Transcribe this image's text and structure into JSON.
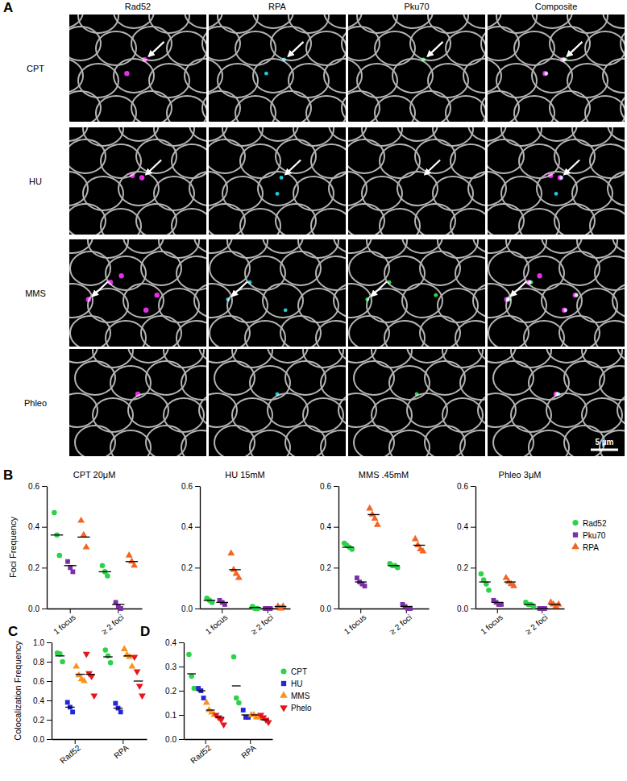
{
  "panel_a": {
    "label": "A",
    "columns": [
      "Rad52",
      "RPA",
      "Pku70",
      "Composite"
    ],
    "rows": [
      "CPT",
      "HU",
      "MMS",
      "Phleo"
    ],
    "scale_bar": "5 µm"
  },
  "chart_data": [
    {
      "type": "dot",
      "title": "CPT 20μM",
      "annotations": [
        "B"
      ],
      "y_label": "Foci Frequency",
      "categories": [
        "1 focus",
        "≥ 2 foci"
      ],
      "ylim": [
        0,
        0.6
      ],
      "yticks": [
        {
          "value": 0,
          "label": "0.0"
        },
        0.2,
        0.4,
        0.6
      ],
      "series": [
        {
          "name": "Rad52",
          "color": "#2dd24b",
          "marker": "circle",
          "values": [
            [
              0.47,
              0.36,
              0.26
            ],
            [
              0.21,
              0.18,
              0.16
            ]
          ],
          "means": [
            0.36,
            0.18
          ]
        },
        {
          "name": "Pku70",
          "color": "#7b2fa8",
          "marker": "square",
          "values": [
            [
              0.23,
              0.2,
              0.18
            ],
            [
              0.03,
              0.01,
              0.0
            ]
          ],
          "means": [
            0.21,
            0.02
          ]
        },
        {
          "name": "RPA",
          "color": "#f26522",
          "marker": "triangle",
          "values": [
            [
              0.43,
              0.36,
              0.3
            ],
            [
              0.26,
              0.23,
              0.21
            ]
          ],
          "means": [
            0.35,
            0.23
          ]
        }
      ]
    },
    {
      "type": "dot",
      "title": "HU 15mM",
      "categories": [
        "1 focus",
        "≥ 2 foci"
      ],
      "ylim": [
        0,
        0.6
      ],
      "yticks": [
        {
          "value": 0,
          "label": "0.0"
        },
        0.2,
        0.4,
        0.6
      ],
      "series": [
        {
          "name": "Rad52",
          "color": "#2dd24b",
          "marker": "circle",
          "values": [
            [
              0.05,
              0.04,
              0.03
            ],
            [
              0.01,
              0.0,
              0.0
            ]
          ],
          "means": [
            0.04,
            0.005
          ]
        },
        {
          "name": "Pku70",
          "color": "#7b2fa8",
          "marker": "square",
          "values": [
            [
              0.04,
              0.03,
              0.02
            ],
            [
              0.0,
              0.0,
              0.0
            ]
          ],
          "means": [
            0.03,
            0.0
          ]
        },
        {
          "name": "RPA",
          "color": "#f26522",
          "marker": "triangle",
          "values": [
            [
              0.27,
              0.19,
              0.17,
              0.15
            ],
            [
              0.01,
              0.0,
              0.01
            ]
          ],
          "means": [
            0.19,
            0.01
          ]
        }
      ]
    },
    {
      "type": "dot",
      "title": "MMS .45mM",
      "categories": [
        "1 focus",
        "≥ 2 foci"
      ],
      "ylim": [
        0,
        0.6
      ],
      "yticks": [
        {
          "value": 0,
          "label": "0.0"
        },
        0.2,
        0.4,
        0.6
      ],
      "series": [
        {
          "name": "Rad52",
          "color": "#2dd24b",
          "marker": "circle",
          "values": [
            [
              0.32,
              0.31,
              0.3,
              0.29
            ],
            [
              0.22,
              0.21,
              0.21,
              0.2
            ]
          ],
          "means": [
            0.3,
            0.21
          ]
        },
        {
          "name": "Pku70",
          "color": "#7b2fa8",
          "marker": "square",
          "values": [
            [
              0.15,
              0.13,
              0.12,
              0.11
            ],
            [
              0.02,
              0.01,
              0.0,
              0.0
            ]
          ],
          "means": [
            0.13,
            0.01
          ]
        },
        {
          "name": "RPA",
          "color": "#f26522",
          "marker": "triangle",
          "values": [
            [
              0.49,
              0.46,
              0.44,
              0.41
            ],
            [
              0.34,
              0.31,
              0.29,
              0.28
            ]
          ],
          "means": [
            0.46,
            0.31
          ]
        }
      ]
    },
    {
      "type": "dot",
      "title": "Phleo 3μM",
      "legend": "right",
      "categories": [
        "1 focus",
        "≥ 2 foci"
      ],
      "ylim": [
        0,
        0.6
      ],
      "yticks": [
        {
          "value": 0,
          "label": "0.0"
        },
        0.2,
        0.4,
        0.6
      ],
      "series": [
        {
          "name": "Rad52",
          "color": "#2dd24b",
          "marker": "circle",
          "values": [
            [
              0.17,
              0.14,
              0.12,
              0.09
            ],
            [
              0.03,
              0.02,
              0.02,
              0.01
            ]
          ],
          "means": [
            0.13,
            0.02
          ]
        },
        {
          "name": "Pku70",
          "color": "#7b2fa8",
          "marker": "square",
          "values": [
            [
              0.04,
              0.03,
              0.02,
              0.02
            ],
            [
              0.0,
              0.0,
              0.0
            ]
          ],
          "means": [
            0.03,
            0.0
          ]
        },
        {
          "name": "RPA",
          "color": "#f26522",
          "marker": "triangle",
          "values": [
            [
              0.15,
              0.13,
              0.12,
              0.11
            ],
            [
              0.03,
              0.02,
              0.01,
              0.02
            ]
          ],
          "means": [
            0.13,
            0.02
          ]
        }
      ]
    },
    {
      "type": "dot",
      "annotations": [
        "C"
      ],
      "y_label": "Colocalization  Frequency",
      "categories": [
        "Rad52",
        "RPA"
      ],
      "ylim": [
        0,
        1
      ],
      "yticks": [
        {
          "value": 0,
          "label": "0.0"
        },
        0.2,
        0.4,
        0.6,
        0.8,
        {
          "value": 1,
          "label": "1.0"
        }
      ],
      "series": [
        {
          "name": "CPT",
          "color": "#2dd24b",
          "marker": "circle",
          "values": [
            [
              0.89,
              0.88,
              0.8
            ],
            [
              0.92,
              0.86,
              0.79
            ]
          ],
          "means": [
            0.86,
            0.85
          ]
        },
        {
          "name": "HU",
          "color": "#2626d9",
          "marker": "square",
          "values": [
            [
              0.38,
              0.33,
              0.28
            ],
            [
              0.37,
              0.32,
              0.28
            ]
          ],
          "means": [
            0.33,
            0.32
          ]
        },
        {
          "name": "MMS",
          "color": "#f7931e",
          "marker": "triangle",
          "values": [
            [
              0.75,
              0.66,
              0.62,
              0.6
            ],
            [
              0.93,
              0.87,
              0.85,
              0.75
            ]
          ],
          "means": [
            0.67,
            0.86
          ]
        },
        {
          "name": "Phelo",
          "color": "#e8141b",
          "marker": "triangle-down",
          "values": [
            [
              0.88,
              0.68,
              0.65,
              0.45
            ],
            [
              0.85,
              0.7,
              0.55,
              0.45
            ]
          ],
          "means": [
            0.67,
            0.6
          ]
        }
      ]
    },
    {
      "type": "dot",
      "annotations": [
        "D"
      ],
      "legend": "right",
      "categories": [
        "Rad52",
        "RPA"
      ],
      "ylim": [
        0,
        0.4
      ],
      "yticks": [
        {
          "value": 0,
          "label": "0.0"
        },
        0.1,
        0.2,
        0.3,
        0.4
      ],
      "series": [
        {
          "name": "CPT",
          "color": "#2dd24b",
          "marker": "circle",
          "values": [
            [
              0.35,
              0.26,
              0.21
            ],
            [
              0.34,
              0.17,
              0.15
            ]
          ],
          "means": [
            0.27,
            0.22
          ]
        },
        {
          "name": "HU",
          "color": "#2626d9",
          "marker": "square",
          "values": [
            [
              0.21,
              0.2,
              0.17
            ],
            [
              0.12,
              0.09,
              0.09
            ]
          ],
          "means": [
            0.2,
            0.1
          ]
        },
        {
          "name": "MMS",
          "color": "#f7931e",
          "marker": "triangle",
          "values": [
            [
              0.15,
              0.12,
              0.11,
              0.1
            ],
            [
              0.1,
              0.1,
              0.09,
              0.09
            ]
          ],
          "means": [
            0.12,
            0.1
          ]
        },
        {
          "name": "Phelo",
          "color": "#e8141b",
          "marker": "triangle-down",
          "values": [
            [
              0.1,
              0.09,
              0.08,
              0.06
            ],
            [
              0.1,
              0.09,
              0.08,
              0.07
            ]
          ],
          "means": [
            0.09,
            0.08
          ]
        }
      ]
    }
  ]
}
